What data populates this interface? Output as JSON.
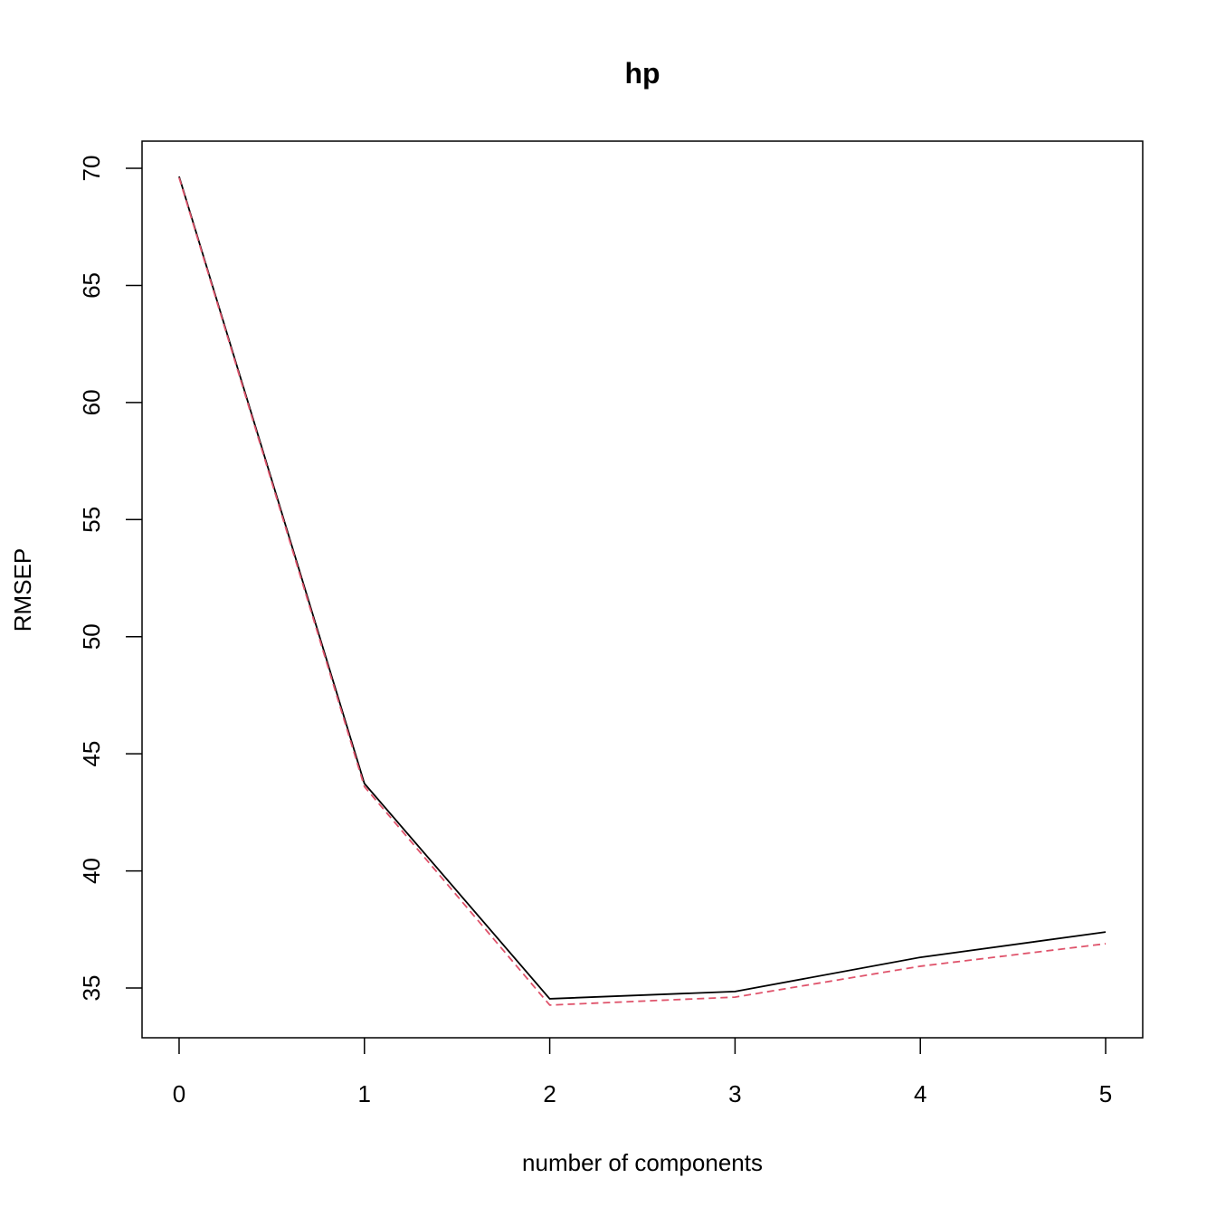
{
  "chart_data": {
    "type": "line",
    "title": "hp",
    "xlabel": "number of components",
    "ylabel": "RMSEP",
    "x": [
      0,
      1,
      2,
      3,
      4,
      5
    ],
    "series": [
      {
        "color": "#000000",
        "dash": false,
        "values": [
          69.65,
          43.73,
          34.54,
          34.85,
          36.31,
          37.39
        ]
      },
      {
        "color": "#df536b",
        "dash": true,
        "values": [
          69.6,
          43.6,
          34.27,
          34.61,
          35.93,
          36.89
        ]
      }
    ],
    "xlim": [
      -0.2,
      5.2
    ],
    "ylim": [
      32.875,
      71.16
    ],
    "xticks": [
      0,
      1,
      2,
      3,
      4,
      5
    ],
    "yticks": [
      35,
      40,
      45,
      50,
      55,
      60,
      65,
      70
    ]
  }
}
